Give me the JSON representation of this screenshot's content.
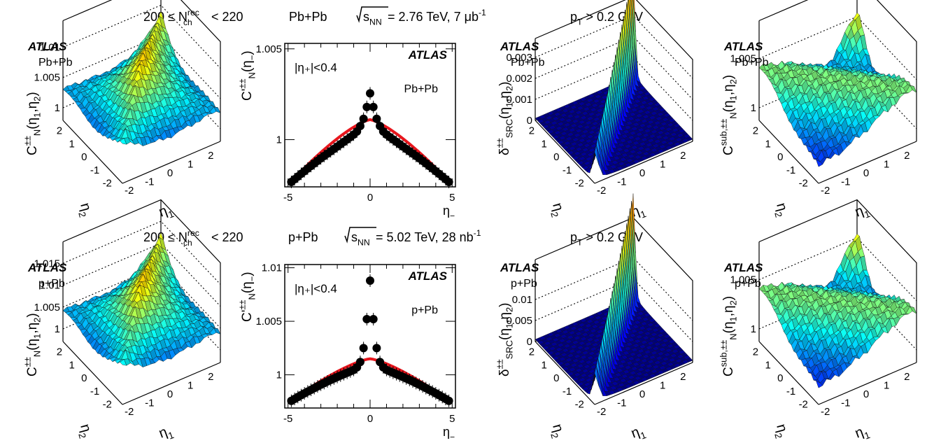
{
  "rows": [
    {
      "header": {
        "mult_pre": "200 ≤ N",
        "mult_sup": "rec",
        "mult_sub": "ch",
        "mult_post": " < 220",
        "system": "Pb+Pb",
        "sqrt_pre": "s",
        "sqrt_sub": "NN",
        "energy": " = 2.76 TeV,  7 μb",
        "energy_sup": "-1",
        "pt": "p",
        "pt_sub": "T",
        "pt_post": " > 0.2 GeV"
      },
      "panels": {
        "cn": {
          "atlas": "ATLAS",
          "system": "Pb+Pb",
          "zticks": [
            "1",
            "1.005",
            "1.01"
          ]
        },
        "proj": {
          "atlas": "ATLAS",
          "system": "Pb+Pb",
          "cut": "|η₊|<0.4",
          "yticks": [
            "1",
            "1.005"
          ]
        },
        "src": {
          "atlas": "ATLAS",
          "system": "Pb+Pb",
          "zticks": [
            "0",
            "0.001",
            "0.002",
            "0.003"
          ]
        },
        "sub": {
          "atlas": "ATLAS",
          "system": "Pb+Pb",
          "zticks": [
            "1",
            "1.005"
          ]
        }
      }
    },
    {
      "header": {
        "mult_pre": "200 ≤ N",
        "mult_sup": "rec",
        "mult_sub": "ch",
        "mult_post": " < 220",
        "system": "p+Pb",
        "sqrt_pre": "s",
        "sqrt_sub": "NN",
        "energy": " = 5.02 TeV, 28 nb",
        "energy_sup": "-1",
        "pt": "p",
        "pt_sub": "T",
        "pt_post": " > 0.2 GeV"
      },
      "panels": {
        "cn": {
          "atlas": "ATLAS",
          "system": "p+Pb",
          "zticks": [
            "1",
            "1.005",
            "1.01",
            "1.015"
          ]
        },
        "proj": {
          "atlas": "ATLAS",
          "system": "p+Pb",
          "cut": "|η₊|<0.4",
          "yticks": [
            "1",
            "1.005",
            "1.01"
          ]
        },
        "src": {
          "atlas": "ATLAS",
          "system": "p+Pb",
          "zticks": [
            "0",
            "0.005",
            "0.01"
          ]
        },
        "sub": {
          "atlas": "ATLAS",
          "system": "p+Pb",
          "zticks": [
            "1",
            "1.005"
          ]
        }
      }
    }
  ],
  "axis_labels": {
    "eta1": "η",
    "eta1_sub": "1",
    "eta2": "η",
    "eta2_sub": "2",
    "etaminus": "η",
    "etaminus_sub": "−",
    "cn": "C",
    "cn_sup": "±±",
    "cn_sub": "N",
    "cn_args": "(η",
    "cnproj": "C'",
    "cnproj_sup": "±±",
    "cnproj_sub": "N",
    "cnproj_args": "(η",
    "src": "δ",
    "src_sup": "±±",
    "src_sub": "SRC",
    "sub": "C",
    "sub_sup": "sub,±±",
    "sub_sub": "N"
  },
  "eta_ticks_3d": [
    "-2",
    "-1",
    "0",
    "1",
    "2"
  ],
  "eta_minus_ticks": [
    "-5",
    "0",
    "5"
  ],
  "chart_data": [
    {
      "type": "scatter",
      "system": "Pb+Pb",
      "x": [
        -4.8,
        -4.6,
        -4.4,
        -4.2,
        -4.0,
        -3.8,
        -3.6,
        -3.4,
        -3.2,
        -3.0,
        -2.8,
        -2.6,
        -2.4,
        -2.2,
        -2.0,
        -1.8,
        -1.6,
        -1.4,
        -1.2,
        -1.0,
        -0.8,
        -0.6,
        -0.4,
        -0.2,
        0.0,
        0.2,
        0.4,
        0.6,
        0.8,
        1.0,
        1.2,
        1.4,
        1.6,
        1.8,
        2.0,
        2.2,
        2.4,
        2.6,
        2.8,
        3.0,
        3.2,
        3.4,
        3.6,
        3.8,
        4.0,
        4.2,
        4.4,
        4.6,
        4.8
      ],
      "y": [
        0.99767,
        0.99782,
        0.99797,
        0.99812,
        0.99826,
        0.99841,
        0.99855,
        0.99869,
        0.99883,
        0.99897,
        0.9991,
        0.99923,
        0.99936,
        0.99949,
        0.99962,
        0.99975,
        0.99988,
        1.00001,
        1.00014,
        1.00028,
        1.00045,
        1.00075,
        1.00115,
        1.0018,
        1.00255,
        1.0018,
        1.00115,
        1.00075,
        1.00045,
        1.00028,
        1.00014,
        1.00001,
        0.99988,
        0.99975,
        0.99962,
        0.99949,
        0.99936,
        0.99923,
        0.9991,
        0.99897,
        0.99883,
        0.99869,
        0.99855,
        0.99841,
        0.99826,
        0.99812,
        0.99797,
        0.99782,
        0.99767
      ],
      "fit": {
        "x_range": [
          -4.8,
          4.8
        ],
        "peak": 1.0011,
        "edge": 0.9977
      },
      "xlim": [
        -5.2,
        5.2
      ],
      "ylim": [
        0.9974,
        1.0053
      ]
    },
    {
      "type": "scatter",
      "system": "p+Pb",
      "x": [
        -4.8,
        -4.6,
        -4.4,
        -4.2,
        -4.0,
        -3.8,
        -3.6,
        -3.4,
        -3.2,
        -3.0,
        -2.8,
        -2.6,
        -2.4,
        -2.2,
        -2.0,
        -1.8,
        -1.6,
        -1.4,
        -1.2,
        -1.0,
        -0.8,
        -0.6,
        -0.4,
        -0.2,
        0.0,
        0.2,
        0.4,
        0.6,
        0.8,
        1.0,
        1.2,
        1.4,
        1.6,
        1.8,
        2.0,
        2.2,
        2.4,
        2.6,
        2.8,
        3.0,
        3.2,
        3.4,
        3.6,
        3.8,
        4.0,
        4.2,
        4.4,
        4.6,
        4.8
      ],
      "y": [
        0.99757,
        0.99775,
        0.99793,
        0.9981,
        0.99827,
        0.99844,
        0.9986,
        0.99876,
        0.99892,
        0.99908,
        0.99923,
        0.99938,
        0.99952,
        0.99966,
        0.9998,
        0.99993,
        1.00006,
        1.00019,
        1.00032,
        1.00046,
        1.0007,
        1.0012,
        1.0025,
        1.0052,
        1.0088,
        1.0052,
        1.0025,
        1.0012,
        1.0007,
        1.00046,
        1.00032,
        1.00019,
        1.00006,
        0.99993,
        0.9998,
        0.99966,
        0.99952,
        0.99938,
        0.99923,
        0.99908,
        0.99892,
        0.99876,
        0.9986,
        0.99844,
        0.99827,
        0.9981,
        0.99793,
        0.99775,
        0.99757
      ],
      "fit": {
        "x_range": [
          -4.8,
          4.8
        ],
        "peak": 1.0015,
        "edge": 0.9976
      },
      "xlim": [
        -5.2,
        5.2
      ],
      "ylim": [
        0.9969,
        1.0103
      ]
    }
  ]
}
